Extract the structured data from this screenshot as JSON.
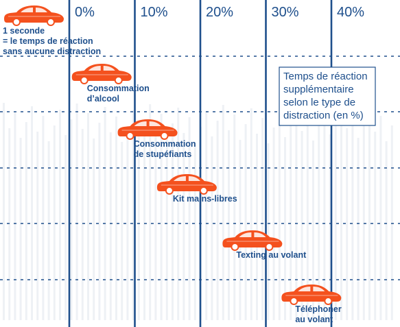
{
  "chart_data": {
    "type": "scatter",
    "x_ticks": [
      "0%",
      "10%",
      "20%",
      "30%",
      "40%"
    ],
    "xlim": [
      -10,
      50
    ],
    "baseline_label": [
      "1 seconde",
      "= le temps de réaction",
      "sans aucune distraction"
    ],
    "info_box": [
      "Temps de réaction",
      "supplémentaire",
      "selon le type de",
      "distraction (en %)"
    ],
    "points": [
      {
        "label": [
          "Consommation",
          "d’alcool"
        ],
        "value": 5
      },
      {
        "label": [
          "Consommation",
          "de stupéfiants"
        ],
        "value": 12
      },
      {
        "label": [
          "Kit mains-libres"
        ],
        "value": 18
      },
      {
        "label": [
          "Texting au volant"
        ],
        "value": 28
      },
      {
        "label": [
          "Téléphoner",
          "au volant"
        ],
        "value": 37
      }
    ],
    "grid": true
  },
  "colors": {
    "axis_line": "#1e4f8c",
    "text": "#1e4f8c",
    "car": "#f4511e",
    "car_window": "#ffffff",
    "car_wheel": "#ffffff",
    "background_art": "#eef1f5"
  }
}
